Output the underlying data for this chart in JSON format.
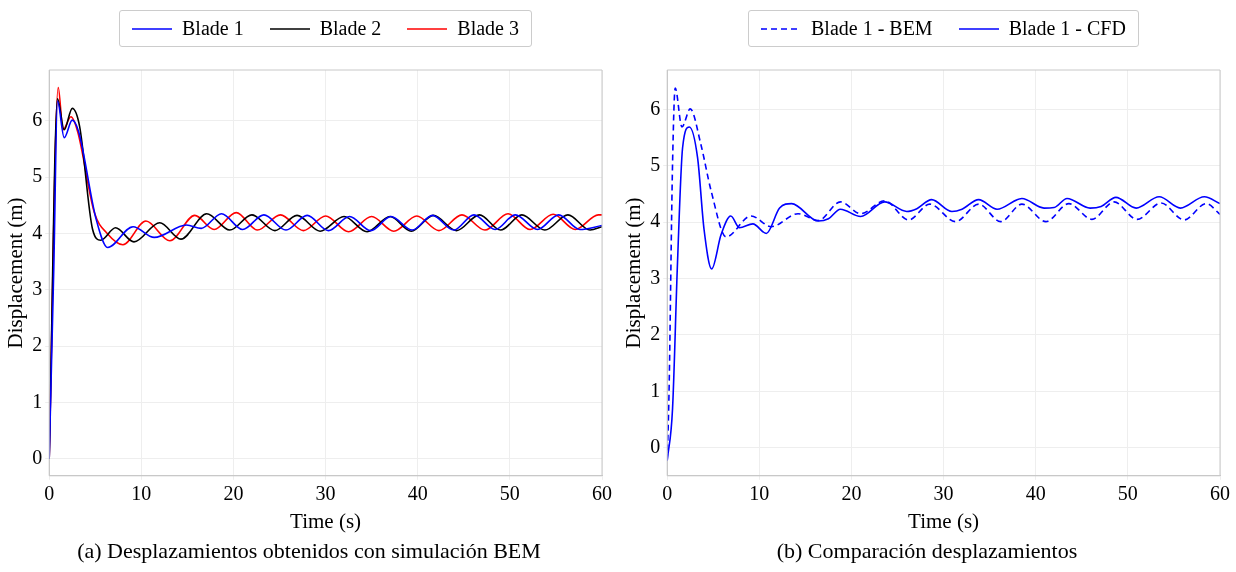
{
  "chart_data": [
    {
      "type": "line",
      "xlabel": "Time (s)",
      "ylabel": "Displacement (m)",
      "xlim": [
        0,
        60
      ],
      "xticks": [
        0,
        10,
        20,
        30,
        40,
        50,
        60
      ],
      "ylim": [
        -0.3,
        6.9
      ],
      "yticks": [
        0,
        1,
        2,
        3,
        4,
        5,
        6
      ],
      "grid": true,
      "legend": "top",
      "line_style": "solid",
      "marker": "none",
      "annotations": [
        "(a) Desplazamientos obtenidos con simulación BEM"
      ],
      "series": [
        {
          "name": "Blade 1",
          "color": "#0000ff",
          "x": [
            0,
            0.5,
            0.9,
            1.63,
            2.5,
            3.2,
            5.1,
            6.35,
            9.1,
            11.4,
            14.9,
            16.5,
            18.7,
            21.0,
            23.3,
            25.7,
            28.0,
            30.3,
            32.6,
            34.9,
            37.1,
            39.4,
            41.6,
            43.9,
            46.1,
            48.4,
            50.6,
            53.0,
            55.3,
            57.6,
            60
          ],
          "values": [
            0,
            3.4,
            6.35,
            5.7,
            6.01,
            5.8,
            4.25,
            3.75,
            4.12,
            3.93,
            4.15,
            4.09,
            4.35,
            4.07,
            4.33,
            4.06,
            4.32,
            4.05,
            4.3,
            4.05,
            4.3,
            4.06,
            4.32,
            4.06,
            4.33,
            4.07,
            4.33,
            4.07,
            4.33,
            4.07,
            4.14
          ]
        },
        {
          "name": "Blade 2",
          "color": "#000000",
          "x": [
            0,
            0.9,
            1.63,
            2.5,
            3.3,
            4.7,
            5.6,
            7.2,
            9.2,
            12.0,
            14.3,
            17.1,
            19.6,
            22.0,
            24.5,
            26.9,
            29.4,
            32.0,
            34.5,
            37.0,
            39.3,
            41.7,
            44.2,
            46.7,
            49.0,
            51.3,
            53.8,
            56.3,
            58.7,
            60
          ],
          "values": [
            0,
            6.39,
            5.84,
            6.22,
            5.9,
            4.08,
            3.88,
            4.1,
            3.85,
            4.19,
            3.9,
            4.35,
            4.06,
            4.33,
            4.05,
            4.32,
            4.04,
            4.3,
            4.03,
            4.3,
            4.04,
            4.32,
            4.05,
            4.33,
            4.06,
            4.33,
            4.06,
            4.33,
            4.06,
            4.12
          ]
        },
        {
          "name": "Blade 3",
          "color": "#ff0000",
          "x": [
            0,
            0.98,
            1.5,
            2.36,
            3.1,
            4.9,
            6.3,
            8.0,
            10.5,
            13.1,
            15.8,
            17.9,
            20.3,
            22.6,
            25.1,
            27.6,
            30.0,
            32.5,
            35.0,
            37.4,
            39.9,
            42.3,
            44.8,
            47.3,
            49.8,
            52.2,
            54.7,
            57.1,
            59.6,
            60
          ],
          "values": [
            0,
            6.59,
            5.84,
            6.07,
            5.8,
            4.37,
            4.0,
            3.8,
            4.22,
            3.87,
            4.32,
            4.07,
            4.37,
            4.06,
            4.33,
            4.05,
            4.31,
            4.03,
            4.3,
            4.04,
            4.31,
            4.05,
            4.33,
            4.06,
            4.35,
            4.07,
            4.34,
            4.07,
            4.33,
            4.33
          ]
        }
      ]
    },
    {
      "type": "line",
      "xlabel": "Time (s)",
      "ylabel": "Displacement (m)",
      "xlim": [
        0,
        60
      ],
      "xticks": [
        0,
        10,
        20,
        30,
        40,
        50,
        60
      ],
      "ylim": [
        -0.5,
        6.7
      ],
      "yticks": [
        0,
        1,
        2,
        3,
        4,
        5,
        6
      ],
      "grid": true,
      "legend": "top",
      "marker": "none",
      "annotations": [
        "(b) Comparación desplazamientos"
      ],
      "series": [
        {
          "name": "Blade 1 - BEM",
          "color": "#0000ff",
          "line_style": "dashed",
          "x": [
            0,
            0.2,
            0.58,
            0.87,
            1.6,
            2.5,
            3.67,
            4.76,
            6.4,
            9.1,
            11.3,
            14.2,
            16.4,
            18.8,
            21.0,
            23.6,
            26.2,
            28.5,
            31.3,
            33.8,
            36.2,
            38.5,
            41.1,
            43.6,
            46.1,
            48.5,
            51.0,
            53.6,
            56.1,
            58.5,
            60
          ],
          "values": [
            -0.23,
            0.99,
            5.03,
            6.38,
            5.69,
            6.01,
            5.37,
            4.56,
            3.74,
            4.11,
            3.92,
            4.15,
            4.03,
            4.36,
            4.15,
            4.38,
            4.04,
            4.32,
            4.01,
            4.32,
            4.01,
            4.32,
            4.01,
            4.33,
            4.05,
            4.36,
            4.05,
            4.34,
            4.04,
            4.33,
            4.14
          ]
        },
        {
          "name": "Blade 1 - CFD",
          "color": "#0000ff",
          "line_style": "solid",
          "x": [
            0,
            0.58,
            1.12,
            1.67,
            2.4,
            3.3,
            4.0,
            4.83,
            5.85,
            6.9,
            7.84,
            9.3,
            10.75,
            12.2,
            13.5,
            16.4,
            17.5,
            18.8,
            21.0,
            23.6,
            26.0,
            27.1,
            28.7,
            30.9,
            32.0,
            33.8,
            35.8,
            38.5,
            40.9,
            42.0,
            43.4,
            45.9,
            47.1,
            48.7,
            50.9,
            53.4,
            55.7,
            58.3,
            60
          ],
          "values": [
            -0.23,
            0.69,
            3.29,
            5.32,
            5.69,
            5.14,
            3.87,
            3.17,
            3.78,
            4.11,
            3.9,
            3.97,
            3.8,
            4.25,
            4.33,
            4.02,
            4.06,
            4.23,
            4.1,
            4.36,
            4.19,
            4.24,
            4.4,
            4.19,
            4.23,
            4.4,
            4.23,
            4.42,
            4.25,
            4.26,
            4.42,
            4.25,
            4.28,
            4.44,
            4.25,
            4.45,
            4.25,
            4.45,
            4.33
          ]
        }
      ]
    }
  ]
}
